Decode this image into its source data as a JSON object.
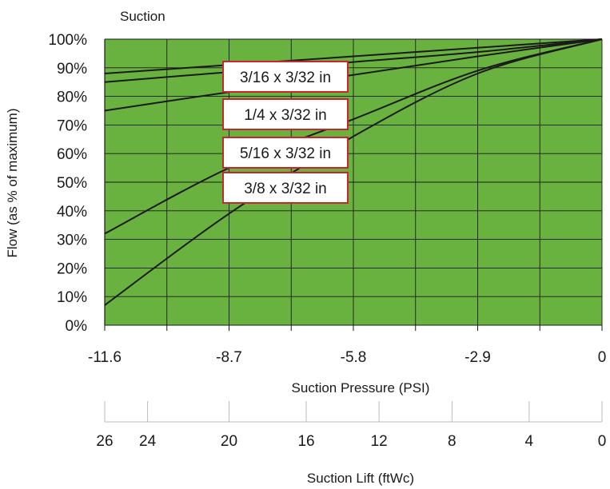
{
  "chart_data": {
    "type": "line",
    "title": "Suction",
    "xlabel": "Suction Pressure (PSI)",
    "ylabel": "Flow (as % of maximum)",
    "xlim": [
      -11.6,
      0
    ],
    "ylim": [
      0,
      100
    ],
    "x_ticks": [
      "-11.6",
      "-8.7",
      "-5.8",
      "-2.9",
      "0"
    ],
    "y_ticks": [
      "0%",
      "10%",
      "20%",
      "30%",
      "40%",
      "50%",
      "60%",
      "70%",
      "80%",
      "90%",
      "100%"
    ],
    "grid": true,
    "colors": {
      "plot_background": "#6ab23f",
      "line": "#1a1a1a",
      "label_border": "#c8252c"
    },
    "series": [
      {
        "name": "3/16 x 3/32 in",
        "x": [
          -11.6,
          -8.7,
          -5.8,
          -2.9,
          0
        ],
        "y": [
          88,
          91,
          94,
          97,
          100
        ]
      },
      {
        "name": "1/4 x 3/32 in",
        "x": [
          -11.6,
          -8.7,
          -5.8,
          -2.9,
          0
        ],
        "y": [
          85,
          88.5,
          92,
          95.5,
          100
        ]
      },
      {
        "name": "5/16 x 3/32 in",
        "x": [
          -11.6,
          -8.7,
          -5.8,
          -2.9,
          0
        ],
        "y": [
          75,
          81.5,
          87.5,
          94,
          100
        ]
      },
      {
        "name": "3/8 x 3/32 in",
        "x": [
          -11.6,
          -8.7,
          -5.8,
          -2.9,
          0
        ],
        "y": [
          32,
          55,
          72,
          89,
          100
        ]
      },
      {
        "name": "",
        "x": [
          -11.6,
          -8.7,
          -5.8,
          -2.9,
          0
        ],
        "y": [
          7,
          39,
          66,
          88,
          100
        ]
      }
    ],
    "secondary_axis": {
      "label": "Suction Lift (ftWc)",
      "ticks": [
        "26",
        "24",
        "20",
        "16",
        "12",
        "8",
        "4",
        "0"
      ],
      "ticks_psi": [
        -11.6,
        -10.6,
        -8.7,
        -6.9,
        -5.2,
        -3.5,
        -1.7,
        0
      ]
    }
  }
}
